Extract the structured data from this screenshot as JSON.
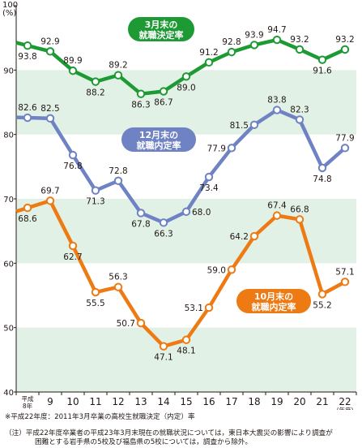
{
  "chart_data": {
    "type": "line",
    "y_unit": "(%)",
    "x_unit": "(年度)",
    "ylim": [
      40,
      100
    ],
    "y_ticks": [
      40,
      50,
      60,
      70,
      80,
      90,
      100
    ],
    "x_first_label": [
      "平成",
      "8年"
    ],
    "categories": [
      "平成8年",
      "9",
      "10",
      "11",
      "12",
      "13",
      "14",
      "15",
      "16",
      "17",
      "18",
      "19",
      "20",
      "21",
      "22"
    ],
    "series": [
      {
        "name": "3月末の就職決定率",
        "color": "#1e9a34",
        "values": [
          93.8,
          92.9,
          89.9,
          88.2,
          89.2,
          86.3,
          86.7,
          89.0,
          91.2,
          92.8,
          93.9,
          94.7,
          93.2,
          91.6,
          93.2
        ]
      },
      {
        "name": "12月末の就職内定率",
        "color": "#6f82c3",
        "values": [
          82.6,
          82.5,
          76.8,
          71.3,
          72.8,
          67.8,
          66.3,
          68.0,
          73.4,
          77.9,
          81.5,
          83.8,
          82.3,
          74.8,
          77.9
        ]
      },
      {
        "name": "10月末の就職内定率",
        "color": "#ee7a14",
        "values": [
          68.6,
          69.7,
          62.7,
          55.5,
          56.3,
          50.7,
          47.1,
          48.1,
          53.1,
          59.0,
          64.2,
          67.4,
          66.8,
          55.2,
          57.1
        ]
      }
    ],
    "grid": "alternating bands"
  },
  "notes": {
    "line1": "※平成22年度：2011年3月卒業の高校生就職決定（内定）率",
    "line2": "（注）平成22年度卒業者の平成23年3月末現在の就職状況については，東日本大震災の影響により調査が",
    "line3": "困難とする岩手県の5校及び福島県の5校については，調査から除外。"
  },
  "colors": {
    "band": "#e1f1e5",
    "axis": "#231815"
  }
}
